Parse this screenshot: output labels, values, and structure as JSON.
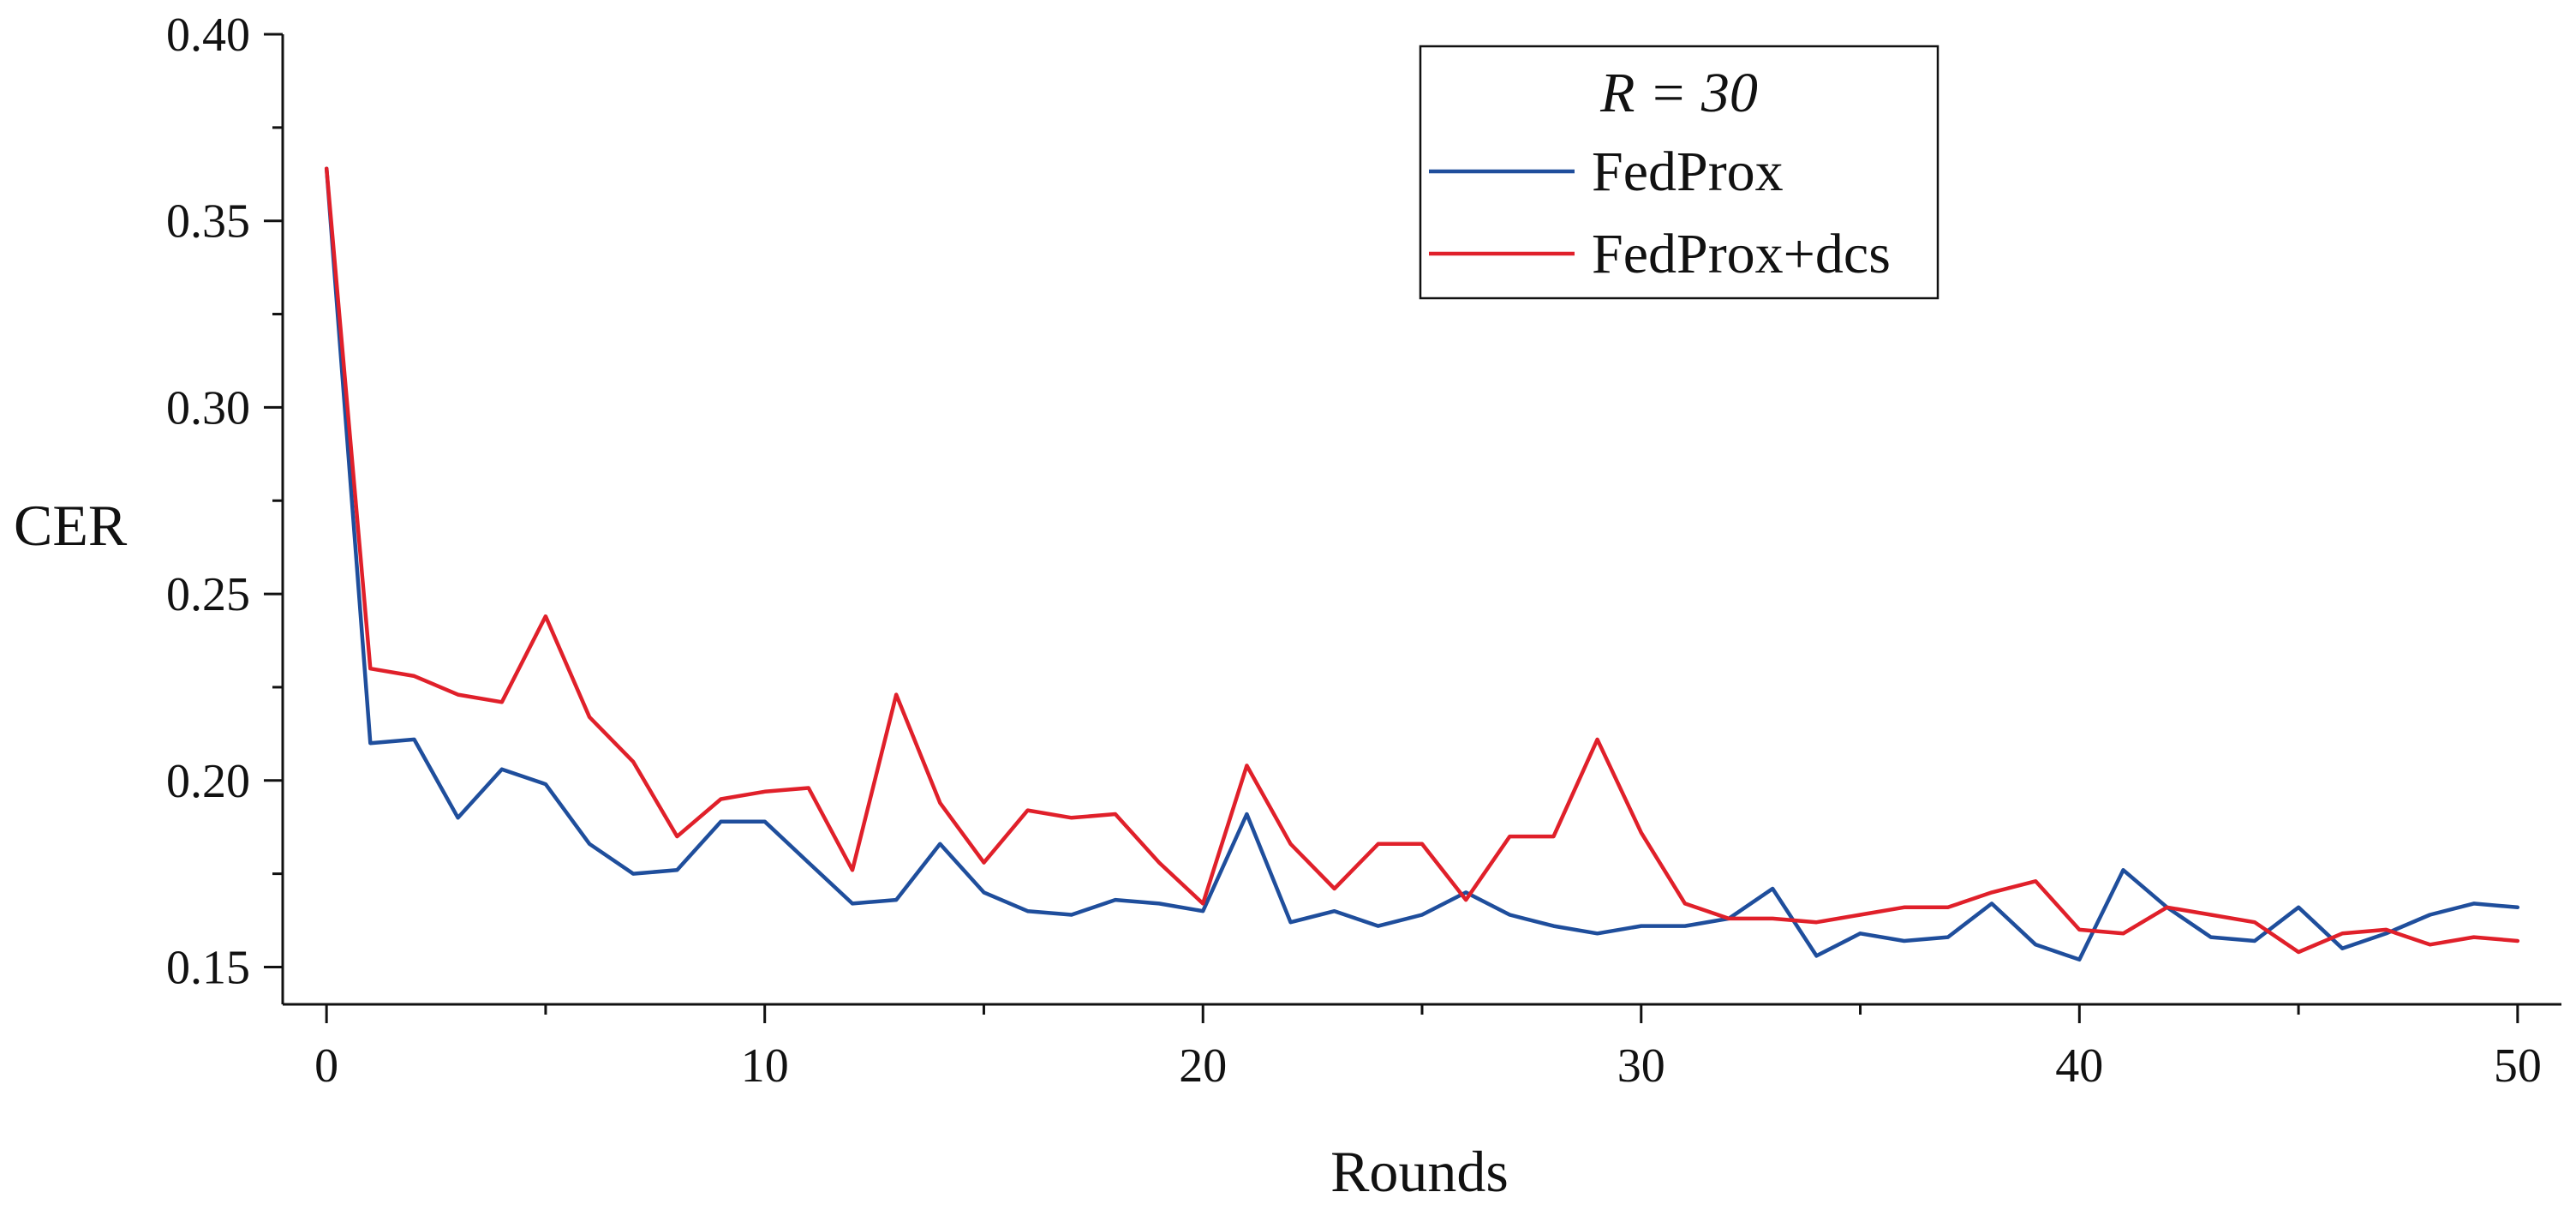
{
  "chart_data": {
    "type": "line",
    "title": "",
    "xlabel": "Rounds",
    "ylabel": "CER",
    "xlim": [
      -1,
      51
    ],
    "ylim": [
      0.14,
      0.4
    ],
    "x_ticks": [
      0,
      10,
      20,
      30,
      40,
      50
    ],
    "x_tick_labels": [
      "0",
      "10",
      "20",
      "30",
      "40",
      "50"
    ],
    "y_ticks": [
      0.15,
      0.2,
      0.25,
      0.3,
      0.35,
      0.4
    ],
    "y_tick_labels": [
      "0.15",
      "0.20",
      "0.25",
      "0.30",
      "0.35",
      "0.40"
    ],
    "grid": false,
    "legend": {
      "title": "R = 30",
      "placement": "top-center"
    },
    "x": [
      0,
      1,
      2,
      3,
      4,
      5,
      6,
      7,
      8,
      9,
      10,
      11,
      12,
      13,
      14,
      15,
      16,
      17,
      18,
      19,
      20,
      21,
      22,
      23,
      24,
      25,
      26,
      27,
      28,
      29,
      30,
      31,
      32,
      33,
      34,
      35,
      36,
      37,
      38,
      39,
      40,
      41,
      42,
      43,
      44,
      45,
      46,
      47,
      48,
      49,
      50
    ],
    "series": [
      {
        "name": "FedProx",
        "color": "#1f4e9c",
        "values": [
          0.364,
          0.21,
          0.211,
          0.19,
          0.203,
          0.199,
          0.183,
          0.175,
          0.176,
          0.189,
          0.189,
          0.178,
          0.167,
          0.168,
          0.183,
          0.17,
          0.165,
          0.164,
          0.168,
          0.167,
          0.165,
          0.191,
          0.162,
          0.165,
          0.161,
          0.164,
          0.17,
          0.164,
          0.161,
          0.159,
          0.161,
          0.161,
          0.163,
          0.171,
          0.153,
          0.159,
          0.157,
          0.158,
          0.167,
          0.156,
          0.152,
          0.176,
          0.166,
          0.158,
          0.157,
          0.166,
          0.155,
          0.159,
          0.164,
          0.167,
          0.166
        ]
      },
      {
        "name": "FedProx+dcs",
        "color": "#e0202a",
        "values": [
          0.364,
          0.23,
          0.228,
          0.223,
          0.221,
          0.244,
          0.217,
          0.205,
          0.185,
          0.195,
          0.197,
          0.198,
          0.176,
          0.223,
          0.194,
          0.178,
          0.192,
          0.19,
          0.191,
          0.178,
          0.167,
          0.204,
          0.183,
          0.171,
          0.183,
          0.183,
          0.168,
          0.185,
          0.185,
          0.211,
          0.186,
          0.167,
          0.163,
          0.163,
          0.162,
          0.164,
          0.166,
          0.166,
          0.17,
          0.173,
          0.16,
          0.159,
          0.166,
          0.164,
          0.162,
          0.154,
          0.159,
          0.16,
          0.156,
          0.158,
          0.157
        ]
      }
    ]
  }
}
